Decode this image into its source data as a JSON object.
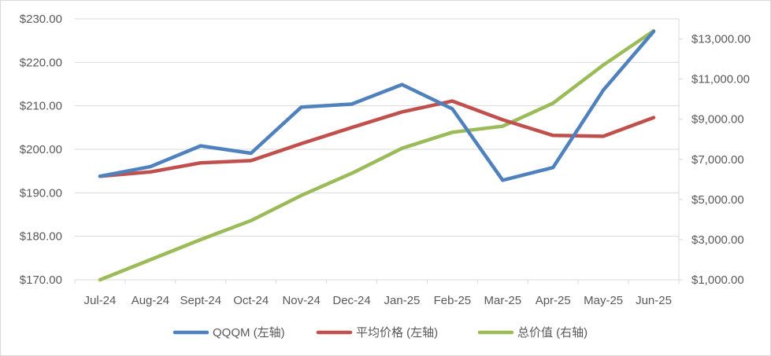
{
  "chart_data": {
    "type": "line",
    "categories": [
      "Jul-24",
      "Aug-24",
      "Sept-24",
      "Oct-24",
      "Nov-24",
      "Dec-24",
      "Jan-25",
      "Feb-25",
      "Mar-25",
      "Apr-25",
      "May-25",
      "Jun-25"
    ],
    "left_axis": {
      "ylim": [
        170,
        230
      ],
      "ticks": [
        170,
        180,
        190,
        200,
        210,
        220,
        230
      ],
      "tick_labels": [
        "$170.00",
        "$180.00",
        "$190.00",
        "$200.00",
        "$210.00",
        "$220.00",
        "$230.00"
      ]
    },
    "right_axis": {
      "ylim": [
        1000,
        14000
      ],
      "ticks": [
        1000,
        3000,
        5000,
        7000,
        9000,
        11000,
        13000
      ],
      "tick_labels": [
        "$1,000.00",
        "$3,000.00",
        "$5,000.00",
        "$7,000.00",
        "$9,000.00",
        "$11,000.00",
        "$13,000.00"
      ]
    },
    "series": [
      {
        "name": "QQQM (左轴)",
        "axis": "left",
        "color": "#4F81BD",
        "values": [
          193.8,
          196.0,
          200.8,
          199.1,
          209.7,
          210.4,
          214.9,
          209.3,
          192.9,
          195.8,
          213.6,
          227.1
        ]
      },
      {
        "name": "平均价格 (左轴)",
        "axis": "left",
        "color": "#C0504D",
        "values": [
          193.8,
          194.8,
          196.9,
          197.4,
          201.3,
          205.0,
          208.6,
          211.1,
          206.8,
          203.2,
          203.0,
          207.3
        ]
      },
      {
        "name": "总价值 (右轴)",
        "axis": "right",
        "color": "#9BBB59",
        "values": [
          1000,
          2000,
          3000,
          3950,
          5200,
          6300,
          7550,
          8350,
          8650,
          9800,
          11700,
          13400
        ]
      }
    ],
    "grid": true,
    "legend_position": "bottom"
  },
  "colors": {
    "grid": "#D9D9D9",
    "axis_text": "#595959",
    "border": "#D9D9D9"
  }
}
